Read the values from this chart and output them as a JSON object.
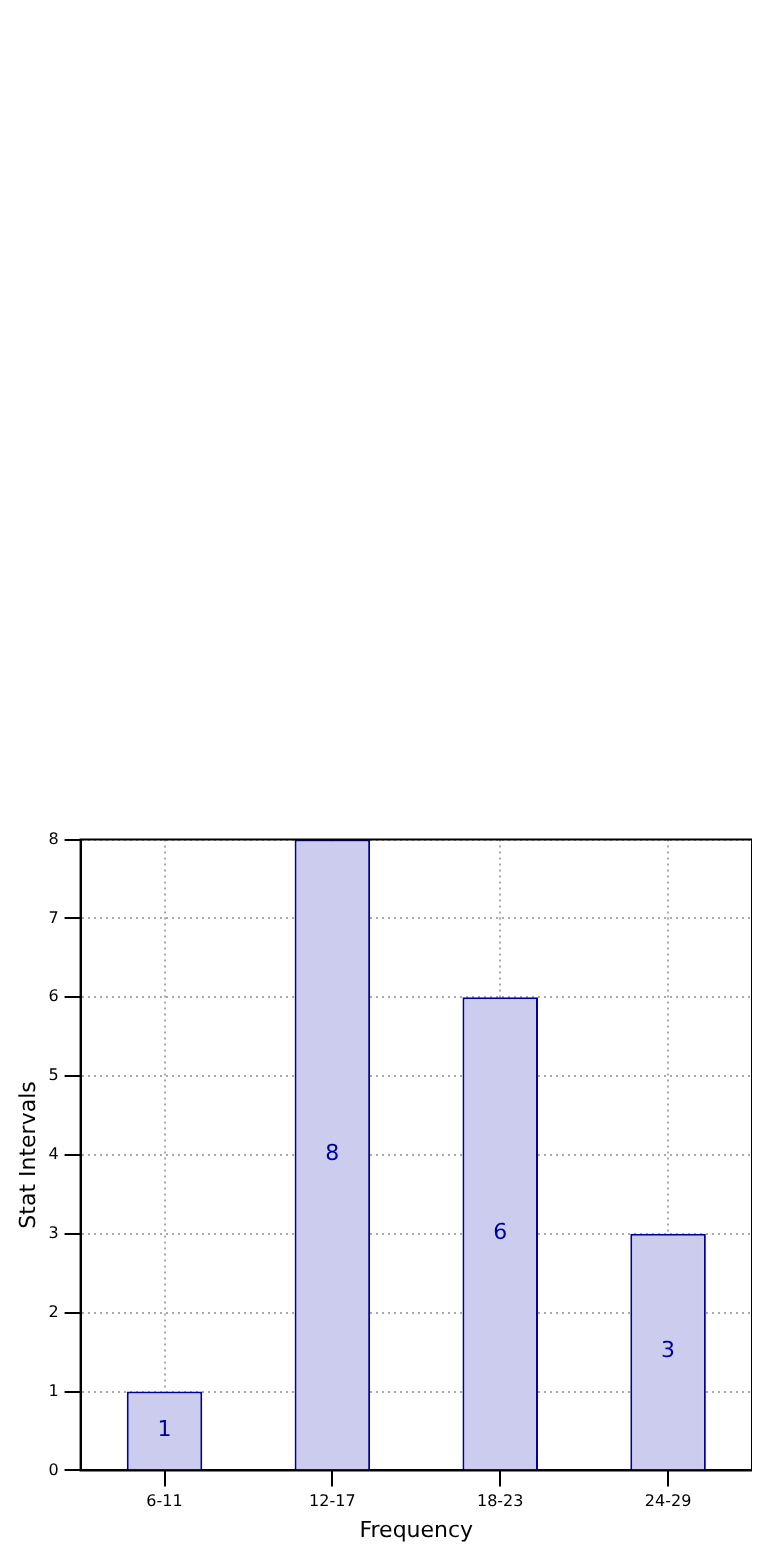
{
  "chart_data": {
    "type": "bar",
    "xlabel": "Frequency",
    "ylabel": "Stat Intervals",
    "categories": [
      "6-11",
      "12-17",
      "18-23",
      "24-29"
    ],
    "values": [
      1,
      8,
      6,
      3
    ],
    "color": "#ccccee",
    "ylim": [
      0,
      8
    ],
    "yticks": [
      0,
      1,
      2,
      3,
      4,
      5,
      6,
      7,
      8
    ],
    "grid": true,
    "data_labels": true
  }
}
